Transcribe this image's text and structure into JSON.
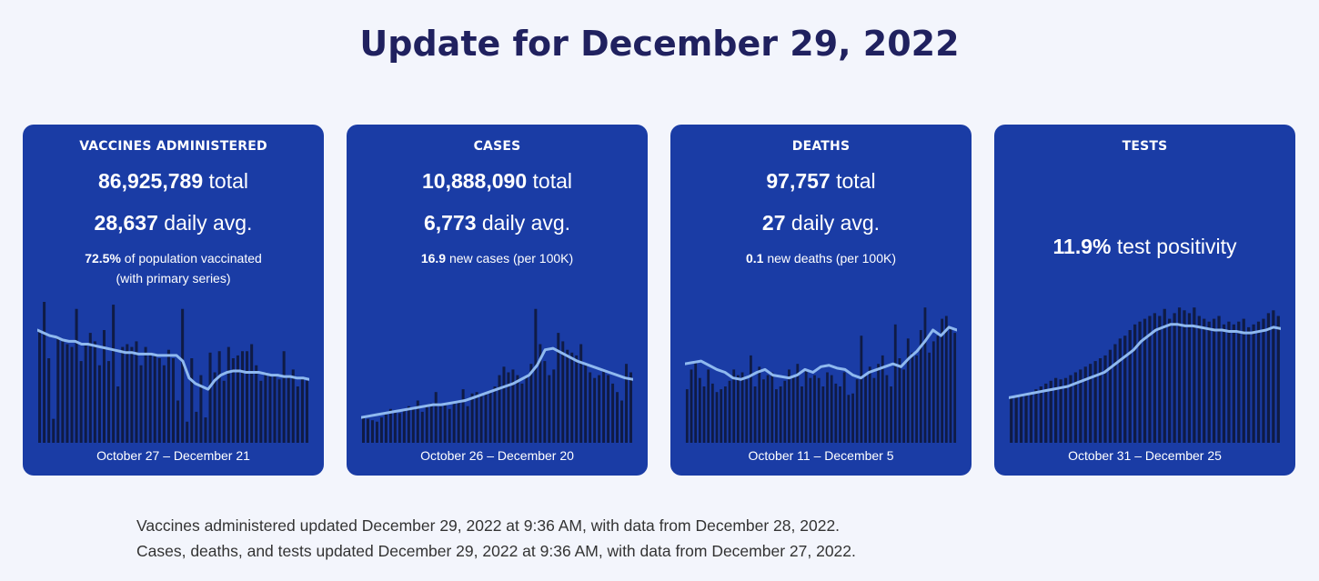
{
  "page_title": "Update for December 29, 2022",
  "colors": {
    "card_bg": "#1a3ca5",
    "bar": "#0f1b45",
    "line": "#8fb9ef",
    "title": "#20215f"
  },
  "cards": {
    "vaccines": {
      "title": "VACCINES ADMINISTERED",
      "total_value": "86,925,789",
      "total_suffix": " total",
      "avg_value": "28,637",
      "avg_suffix": " daily avg.",
      "note_value": "72.5%",
      "note_suffix": " of population vaccinated",
      "note_line2": "(with primary series)",
      "date_range": "October 27 – December 21"
    },
    "cases": {
      "title": "CASES",
      "total_value": "10,888,090",
      "total_suffix": " total",
      "avg_value": "6,773",
      "avg_suffix": " daily avg.",
      "note_value": "16.9",
      "note_suffix": " new cases (per 100K)",
      "date_range": "October 26 – December 20"
    },
    "deaths": {
      "title": "DEATHS",
      "total_value": "97,757",
      "total_suffix": " total",
      "avg_value": "27",
      "avg_suffix": " daily avg.",
      "note_value": "0.1",
      "note_suffix": " new deaths (per 100K)",
      "date_range": "October 11 – December 5"
    },
    "tests": {
      "title": "TESTS",
      "positivity_value": "11.9%",
      "positivity_suffix": " test positivity",
      "date_range": "October 31 – December 25"
    }
  },
  "footer": {
    "line1": "Vaccines administered updated December 29, 2022 at 9:36 AM, with data from December 28, 2022.",
    "line2": "Cases, deaths, and tests updated December 29, 2022 at 9:36 AM, with data from December 27, 2022."
  },
  "chart_data": [
    {
      "type": "bar",
      "name": "vaccines",
      "ylim": [
        0,
        100
      ],
      "values": [
        80,
        100,
        60,
        17,
        75,
        72,
        70,
        68,
        95,
        58,
        70,
        78,
        72,
        55,
        80,
        58,
        98,
        40,
        68,
        70,
        68,
        72,
        55,
        68,
        64,
        62,
        60,
        55,
        66,
        60,
        30,
        95,
        15,
        60,
        22,
        48,
        18,
        64,
        50,
        65,
        44,
        68,
        60,
        62,
        65,
        65,
        70,
        55,
        44,
        50,
        48,
        48,
        45,
        65,
        48,
        52,
        40,
        46,
        44
      ],
      "trend": [
        80,
        78,
        76,
        75,
        73,
        72,
        72,
        70,
        70,
        69,
        68,
        67,
        66,
        65,
        64,
        64,
        63,
        63,
        63,
        62,
        62,
        62,
        62,
        58,
        46,
        42,
        40,
        38,
        44,
        48,
        50,
        51,
        51,
        50,
        50,
        50,
        49,
        48,
        48,
        47,
        47,
        46,
        46,
        45
      ]
    },
    {
      "type": "bar",
      "name": "cases",
      "ylim": [
        0,
        100
      ],
      "values": [
        18,
        17,
        16,
        15,
        18,
        20,
        24,
        22,
        21,
        23,
        26,
        25,
        30,
        22,
        26,
        28,
        36,
        26,
        27,
        24,
        28,
        30,
        38,
        26,
        35,
        36,
        34,
        35,
        36,
        40,
        48,
        54,
        50,
        52,
        48,
        42,
        47,
        56,
        95,
        70,
        58,
        48,
        52,
        78,
        72,
        66,
        64,
        62,
        70,
        56,
        50,
        46,
        48,
        52,
        48,
        42,
        36,
        30,
        56,
        50
      ],
      "trend": [
        18,
        19,
        20,
        21,
        22,
        23,
        24,
        25,
        26,
        27,
        27,
        28,
        29,
        30,
        32,
        34,
        36,
        38,
        40,
        42,
        45,
        48,
        55,
        66,
        67,
        64,
        61,
        58,
        56,
        54,
        52,
        50,
        48,
        46,
        45
      ]
    },
    {
      "type": "bar",
      "name": "deaths",
      "ylim": [
        0,
        100
      ],
      "values": [
        38,
        52,
        58,
        46,
        40,
        52,
        42,
        36,
        38,
        40,
        44,
        52,
        48,
        50,
        45,
        62,
        40,
        54,
        45,
        48,
        50,
        38,
        40,
        44,
        52,
        48,
        56,
        40,
        52,
        46,
        48,
        46,
        40,
        50,
        48,
        42,
        40,
        50,
        34,
        35,
        45,
        76,
        48,
        54,
        46,
        56,
        62,
        48,
        40,
        84,
        60,
        52,
        74,
        64,
        62,
        80,
        96,
        64,
        72,
        76,
        88,
        90,
        82,
        78
      ],
      "trend": [
        56,
        57,
        58,
        55,
        52,
        50,
        46,
        45,
        47,
        50,
        52,
        48,
        47,
        46,
        48,
        52,
        50,
        54,
        55,
        53,
        52,
        48,
        46,
        50,
        52,
        54,
        56,
        54,
        60,
        65,
        72,
        80,
        76,
        82,
        80
      ]
    },
    {
      "type": "bar",
      "name": "tests",
      "ylim": [
        0,
        100
      ],
      "values": [
        32,
        33,
        34,
        35,
        36,
        38,
        40,
        42,
        44,
        46,
        45,
        46,
        48,
        50,
        52,
        54,
        56,
        58,
        60,
        62,
        66,
        70,
        74,
        76,
        80,
        84,
        86,
        88,
        90,
        92,
        90,
        95,
        88,
        92,
        96,
        94,
        92,
        96,
        90,
        88,
        86,
        88,
        90,
        84,
        86,
        84,
        86,
        88,
        82,
        84,
        86,
        88,
        92,
        94,
        90
      ],
      "trend": [
        32,
        33,
        34,
        35,
        36,
        37,
        38,
        39,
        40,
        42,
        44,
        46,
        48,
        50,
        54,
        58,
        62,
        66,
        72,
        76,
        80,
        82,
        84,
        84,
        83,
        83,
        82,
        81,
        80,
        80,
        79,
        79,
        78,
        78,
        79,
        80,
        82,
        81
      ]
    }
  ]
}
